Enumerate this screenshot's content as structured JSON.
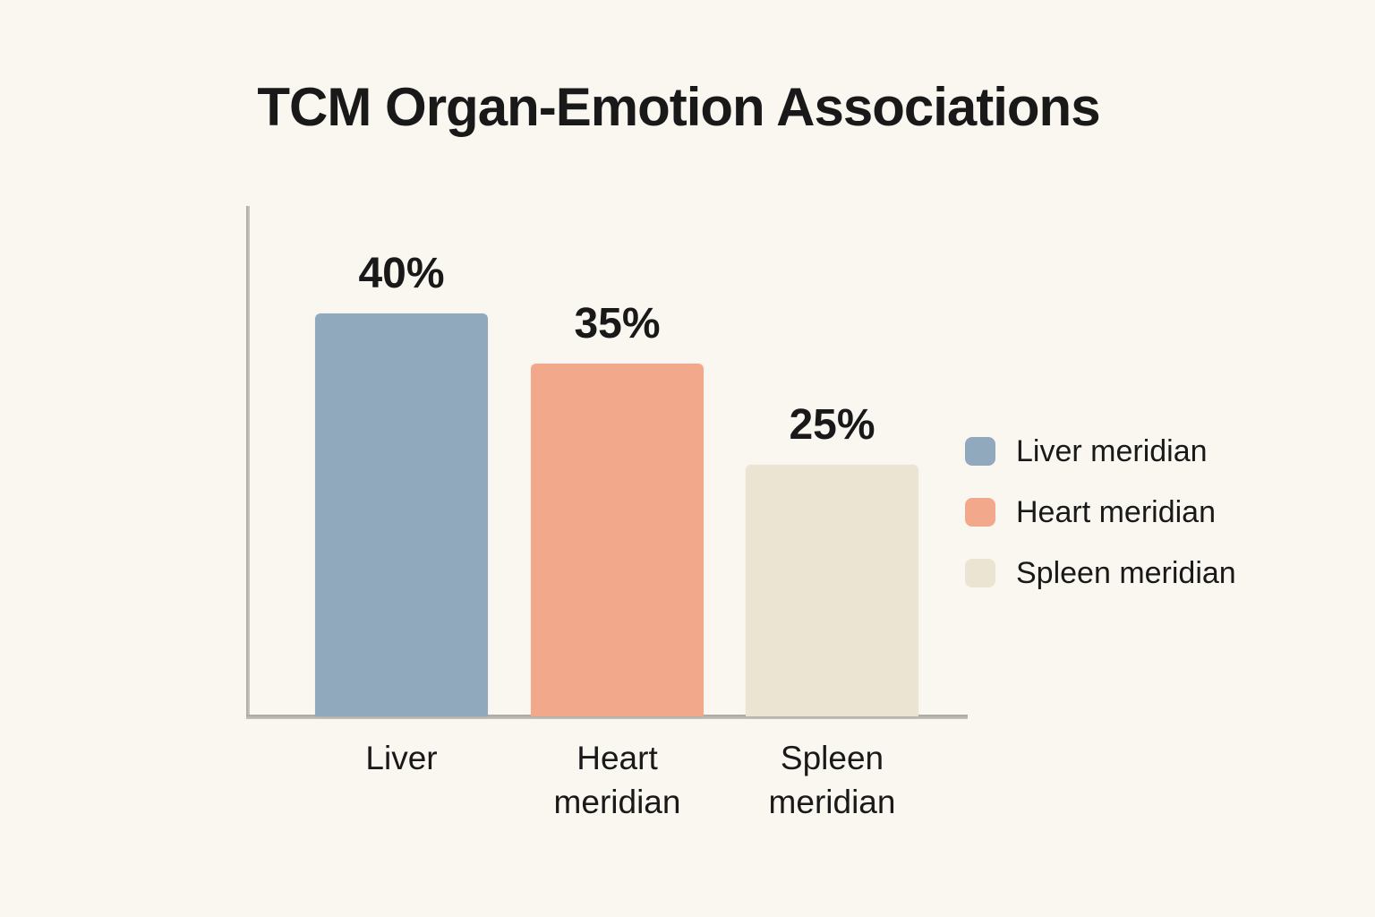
{
  "page": {
    "background_color": "#faf7f0",
    "text_color": "#191919",
    "axis_color": "#b5b2aa"
  },
  "chart_data": {
    "type": "bar",
    "title": "TCM Organ-Emotion Associations",
    "categories": [
      "Liver",
      "Heart meridian",
      "Spleen meridian"
    ],
    "values": [
      40,
      35,
      25
    ],
    "value_labels": [
      "40%",
      "35%",
      "25%"
    ],
    "bar_colors": [
      "#90a9bd",
      "#f2a98b",
      "#ece4d2"
    ],
    "xlabel": "",
    "ylabel": "",
    "ylim": [
      0,
      50
    ],
    "grid": false,
    "legend": {
      "position": "right",
      "entries": [
        {
          "label": "Liver meridian",
          "color": "#90a9bd"
        },
        {
          "label": "Heart meridian",
          "color": "#f2a98b"
        },
        {
          "label": "Spleen meridian",
          "color": "#ece4d2"
        }
      ]
    }
  }
}
